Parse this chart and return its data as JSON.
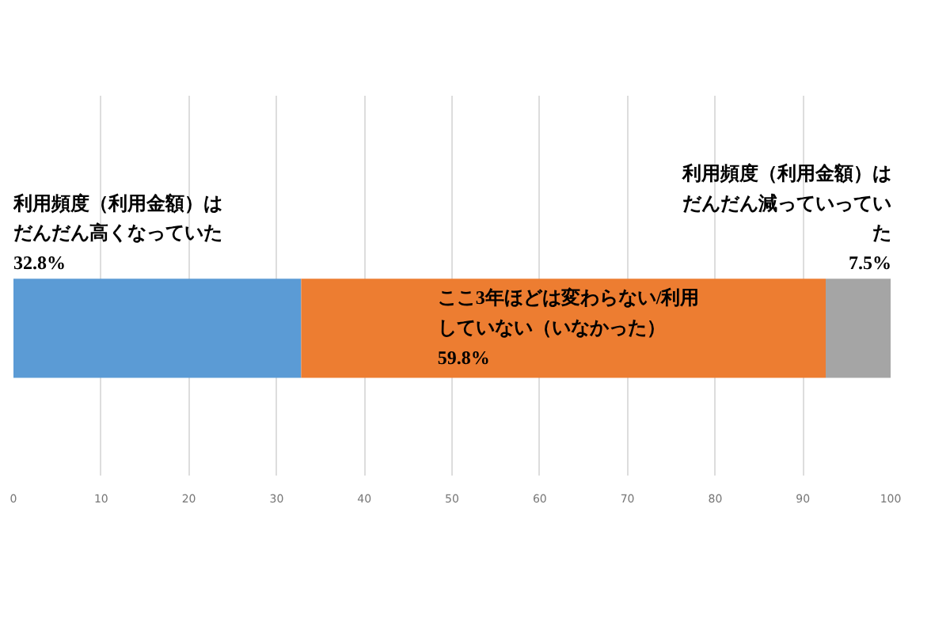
{
  "chart_data": {
    "type": "bar",
    "orientation": "horizontal",
    "stacked": true,
    "categories": [
      null
    ],
    "series": [
      {
        "name": "利用頻度（利用金額）はだんだん高くなっていた",
        "color": "#5b9bd5",
        "values": [
          32.8
        ],
        "value_labels": [
          "32.8%"
        ]
      },
      {
        "name": "ここ3年ほどは変わらない/利用していない（いなかった）",
        "color": "#ed7d31",
        "values": [
          59.8
        ],
        "value_labels": [
          "59.8%"
        ]
      },
      {
        "name": "利用頻度（利用金額）はだんだん減っていっていた",
        "color": "#a5a5a5",
        "values": [
          7.5
        ],
        "value_labels": [
          "7.5%"
        ]
      }
    ],
    "xlim": [
      0,
      100
    ],
    "xticks": [
      0,
      10,
      20,
      30,
      40,
      50,
      60,
      70,
      80,
      90,
      100
    ],
    "grid": "x"
  }
}
